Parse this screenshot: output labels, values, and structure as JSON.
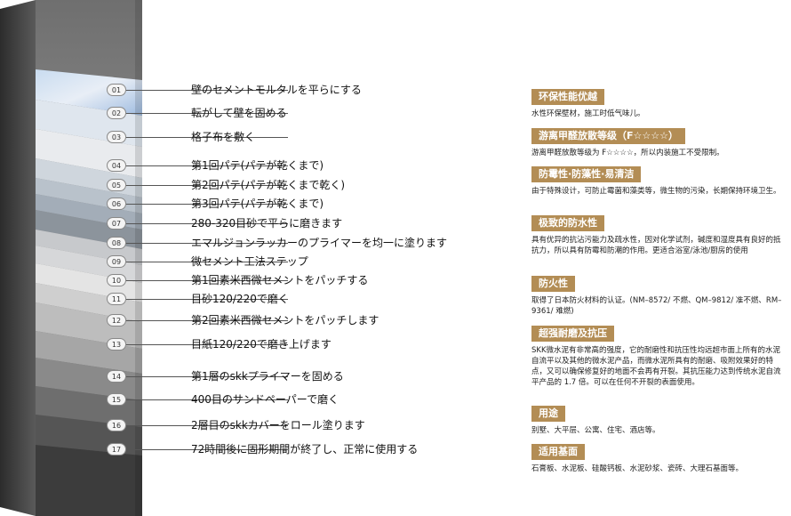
{
  "steps": [
    {
      "num": "01",
      "text": "壁のセメントモルタルを平らにする"
    },
    {
      "num": "02",
      "text": "転がして壁を固める"
    },
    {
      "num": "03",
      "text": "格子布を敷く"
    },
    {
      "num": "04",
      "text": "第1回パテ(パテが乾くまで)"
    },
    {
      "num": "05",
      "text": "第2回パテ(パテが乾くまで乾く)"
    },
    {
      "num": "06",
      "text": "第3回パテ(パテが乾くまで)"
    },
    {
      "num": "07",
      "text": "280-320目砂で平らに磨きます"
    },
    {
      "num": "08",
      "text": "エマルジョンラッカーのプライマーを均一に塗ります"
    },
    {
      "num": "09",
      "text": "微セメント工法ステップ"
    },
    {
      "num": "10",
      "text": "第1回素米西微セメントをパッチする"
    },
    {
      "num": "11",
      "text": "目砂120/220で磨く"
    },
    {
      "num": "12",
      "text": "第2回素米西微セメントをパッチします"
    },
    {
      "num": "13",
      "text": "目紙120/220で磨き上げます"
    },
    {
      "num": "14",
      "text": "第1層のskkプライマーを固める"
    },
    {
      "num": "15",
      "text": "400目のサンドペーパーで磨く"
    },
    {
      "num": "16",
      "text": "2層目のskkカバーをロール塗ります"
    },
    {
      "num": "17",
      "text": "72時間後に固形期間が終了し、正常に使用する"
    }
  ],
  "features": [
    {
      "title": "环保性能优越",
      "desc": "水性环保壁材，施工时低气味儿。"
    },
    {
      "title": "游离甲醛放散等级（F☆☆☆☆）",
      "desc": "游离甲醛放散等级为 F☆☆☆☆，所以内装施工不受限制。"
    },
    {
      "title": "防霉性·防藻性·易清洁",
      "desc": "由于特殊设计，可防止霉菌和藻类等，微生物的污染，长期保持环境卫生。"
    },
    {
      "title": "极致的防水性",
      "desc": "具有优异的抗沾污能力及疏水性，因对化学试剂，碱度和湿度具有良好的抵抗力，所以具有防霉和防潮的作用。更适合浴室/泳池/厨房的使用"
    },
    {
      "title": "防火性",
      "desc": "取得了日本防火材料的认证。(NM–8572/ 不燃、QM–9812/ 准不燃、RM–9361/ 难燃)"
    },
    {
      "title": "超强耐磨及抗压",
      "desc": "SKK微水泥有非常高的强度，它的耐磨性和抗压性均远超市面上所有的水泥自流平以及其他的微水泥产品，而微水泥所具有的耐磨、吸附效果好的特点，又可以确保修复好的地面不会再有开裂。其抗压能力达到传统水泥自流平产品的 1.7 倍。可以在任何不开裂的表面使用。"
    },
    {
      "title": "用途",
      "desc": "别墅、大平层、公寓、住宅、酒店等。"
    },
    {
      "title": "适用基面",
      "desc": "石膏板、水泥板、硅酸钙板、水泥砂浆、瓷砖、大理石基面等。"
    }
  ]
}
